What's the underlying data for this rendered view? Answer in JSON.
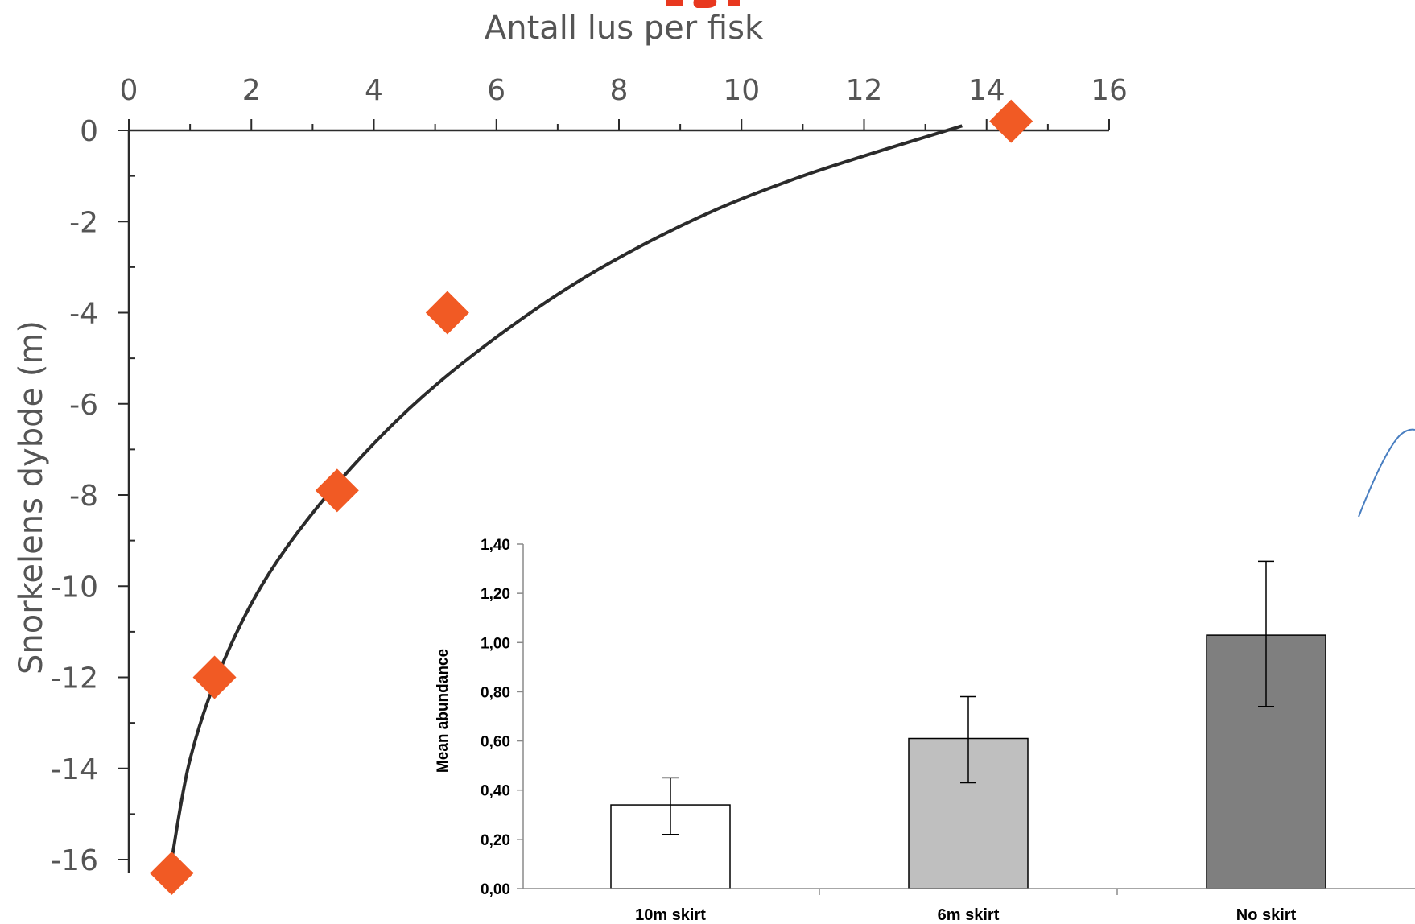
{
  "colors": {
    "title_red": "#e8381f",
    "marker_orange": "#f15a24",
    "axis_black": "#2b2b2b",
    "label_gray": "#555555",
    "bar_10m": "#ffffff",
    "bar_6m": "#bfbfbf",
    "bar_noskirt": "#7f7f7f",
    "blue_curve": "#4a7fc1"
  },
  "chart_data": [
    {
      "type": "scatter",
      "title": "",
      "xlabel": "Antall lus per fisk",
      "ylabel": "Snorkelens dybde (m)",
      "xlim": [
        0,
        16
      ],
      "ylim": [
        -16,
        0
      ],
      "x_ticks": [
        0,
        2,
        4,
        6,
        8,
        10,
        12,
        14,
        16
      ],
      "y_ticks": [
        0,
        -2,
        -4,
        -6,
        -8,
        -10,
        -12,
        -14,
        -16
      ],
      "grid": false,
      "legend": "none",
      "series": [
        {
          "marker": "diamond",
          "points": [
            {
              "x": 14.4,
              "y": 0.2
            },
            {
              "x": 5.2,
              "y": -4.0
            },
            {
              "x": 3.4,
              "y": -7.9
            },
            {
              "x": 1.4,
              "y": -12.0
            },
            {
              "x": 0.7,
              "y": -16.3
            }
          ]
        },
        {
          "type": "line",
          "points": [
            {
              "x": 13.6,
              "y": 0.1
            },
            {
              "x": 11.0,
              "y": -1.0
            },
            {
              "x": 9.0,
              "y": -2.1
            },
            {
              "x": 7.0,
              "y": -3.6
            },
            {
              "x": 5.0,
              "y": -5.6
            },
            {
              "x": 3.5,
              "y": -7.6
            },
            {
              "x": 2.3,
              "y": -9.7
            },
            {
              "x": 1.5,
              "y": -11.8
            },
            {
              "x": 1.0,
              "y": -13.8
            },
            {
              "x": 0.7,
              "y": -16.0
            }
          ]
        }
      ]
    },
    {
      "type": "bar",
      "title": "",
      "xlabel": "",
      "ylabel": "Mean abundance",
      "ylim": [
        0,
        1.4
      ],
      "y_ticks": [
        "0,00",
        "0,20",
        "0,40",
        "0,60",
        "0,80",
        "1,00",
        "1,20",
        "1,40"
      ],
      "grid": false,
      "legend": "none",
      "categories": [
        "10m skirt",
        "6m skirt",
        "No skirt"
      ],
      "values": [
        0.34,
        0.61,
        1.03
      ],
      "error_low": [
        0.22,
        0.43,
        0.74
      ],
      "error_high": [
        0.45,
        0.78,
        1.33
      ]
    }
  ]
}
